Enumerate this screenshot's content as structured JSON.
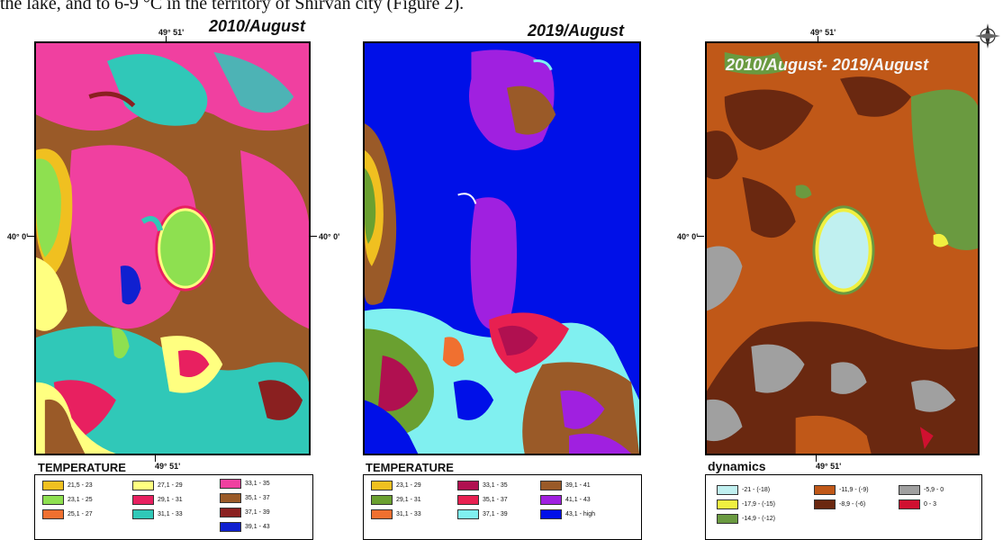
{
  "caption": "the lake, and to 6-9 °C in the territory of Shirvan city (Figure 2).",
  "panels": [
    {
      "title": "2010/August",
      "coords": {
        "top": "49° 51'",
        "left": "40° 0'",
        "right": "40° 0'",
        "bottom": "49° 51'"
      },
      "legend_title": "TEMPERATURE",
      "legend": [
        {
          "label": "21,5 - 23",
          "color": "#f0c020"
        },
        {
          "label": "23,1 - 25",
          "color": "#8ee050"
        },
        {
          "label": "25,1 - 27",
          "color": "#f07030"
        },
        {
          "label": "27,1 - 29",
          "color": "#ffff80"
        },
        {
          "label": "29,1 - 31",
          "color": "#e82060"
        },
        {
          "label": "31,1 - 33",
          "color": "#30c8b8"
        },
        {
          "label": "33,1 - 35",
          "color": "#f040a0"
        },
        {
          "label": "35,1 - 37",
          "color": "#9a5a28"
        },
        {
          "label": "37,1 - 39",
          "color": "#8a2020"
        },
        {
          "label": "39,1 - 43",
          "color": "#1020d0"
        }
      ]
    },
    {
      "title": "2019/August",
      "coords": {
        "top": "",
        "left": "",
        "right": "",
        "bottom": ""
      },
      "legend_title": "TEMPERATURE",
      "legend": [
        {
          "label": "23,1 - 29",
          "color": "#f0c020"
        },
        {
          "label": "29,1 - 31",
          "color": "#6aa030"
        },
        {
          "label": "31,1 - 33",
          "color": "#f07030"
        },
        {
          "label": "33,1 - 35",
          "color": "#b01050"
        },
        {
          "label": "35,1 - 37",
          "color": "#e82050"
        },
        {
          "label": "37,1 - 39",
          "color": "#80f0f0"
        },
        {
          "label": "39,1 - 41",
          "color": "#9a5a28"
        },
        {
          "label": "41,1 - 43",
          "color": "#a020e0"
        },
        {
          "label": "43,1 - high",
          "color": "#0010e8"
        }
      ]
    },
    {
      "title": "2010/August- 2019/August",
      "coords": {
        "top": "49° 51'",
        "left": "40° 0'",
        "right": "",
        "bottom": "49° 51'"
      },
      "legend_title": "dynamics",
      "legend": [
        {
          "label": "-21 - (-18)",
          "color": "#c0f0f0"
        },
        {
          "label": "-17,9 - (-15)",
          "color": "#f0f040"
        },
        {
          "label": "-14,9 - (-12)",
          "color": "#6a9a40"
        },
        {
          "label": "-11,9 - (-9)",
          "color": "#c05818"
        },
        {
          "label": "-8,9 - (-6)",
          "color": "#6a2810"
        },
        {
          "label": "-5,9 - 0",
          "color": "#a0a0a0"
        },
        {
          "label": "0 - 3",
          "color": "#d01030"
        }
      ]
    }
  ],
  "north_arrow": "north-arrow-icon"
}
